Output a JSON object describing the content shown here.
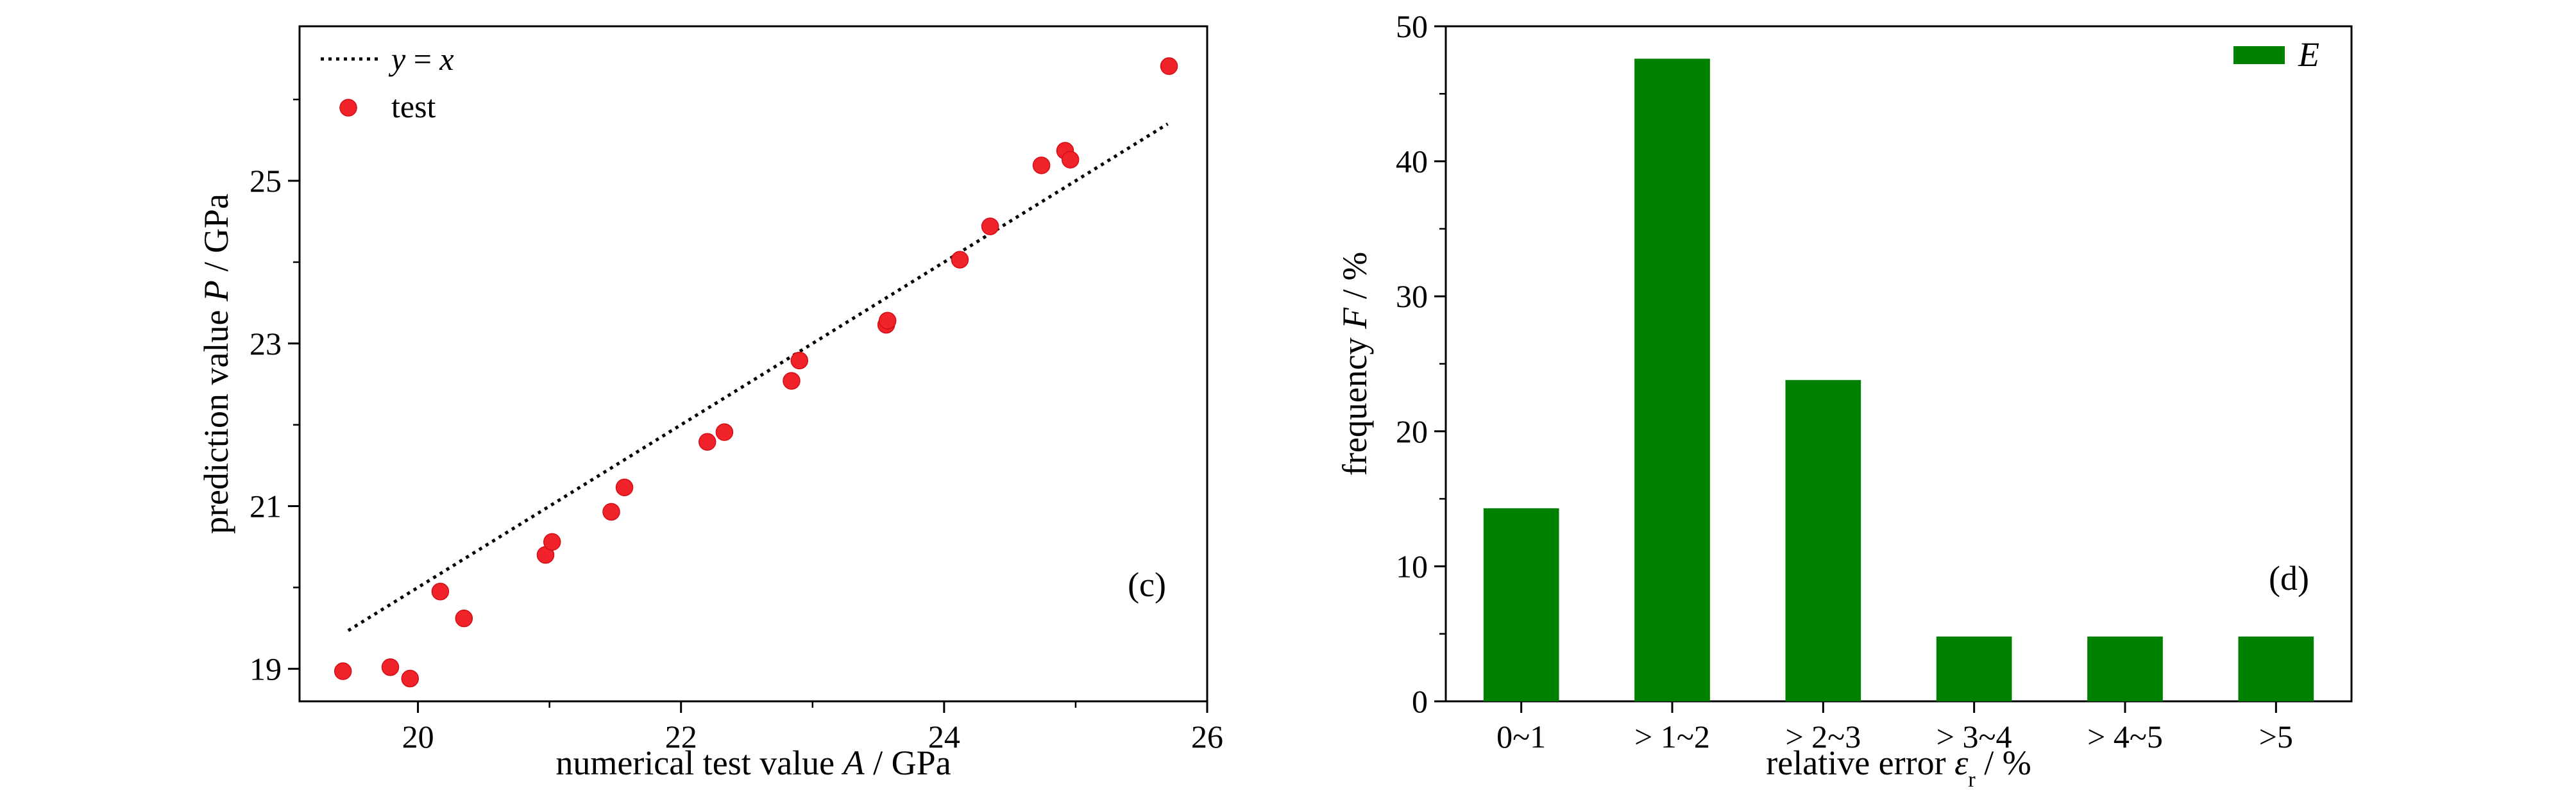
{
  "chart_data": [
    {
      "type": "scatter",
      "panel_label": "(c)",
      "xlabel": {
        "pre": "numerical test value ",
        "var": "A",
        "post": " / GPa"
      },
      "ylabel": {
        "pre": "prediction value ",
        "var": "P",
        "post": " / GPa"
      },
      "xlim": [
        19.1,
        26.0
      ],
      "ylim": [
        18.6,
        26.9
      ],
      "x_ticks": [
        20,
        22,
        24,
        26
      ],
      "y_ticks": [
        19,
        21,
        23,
        25
      ],
      "x_minor_ticks": [
        21,
        23,
        25
      ],
      "y_minor_ticks": [
        20,
        22,
        24,
        26
      ],
      "grid": false,
      "legend_position": "top-left",
      "series": [
        {
          "name": "y = x",
          "name_parts": [
            [
              "y",
              "var"
            ],
            [
              " = ",
              "text"
            ],
            [
              "x",
              "var"
            ]
          ],
          "kind": "line",
          "style": "dotted",
          "color": "#000000",
          "x": [
            19.47,
            25.7
          ],
          "y": [
            19.47,
            25.7
          ]
        },
        {
          "name": "test",
          "kind": "scatter",
          "color": "#f0222a",
          "x": [
            19.43,
            19.79,
            19.94,
            20.17,
            20.35,
            20.97,
            21.02,
            21.47,
            21.57,
            22.2,
            22.33,
            22.84,
            22.9,
            23.56,
            23.57,
            24.12,
            24.35,
            24.74,
            24.92,
            24.96,
            25.71
          ],
          "y": [
            18.97,
            19.02,
            18.88,
            19.95,
            19.62,
            20.4,
            20.56,
            20.93,
            21.23,
            21.79,
            21.91,
            22.54,
            22.79,
            23.23,
            23.28,
            24.03,
            24.44,
            25.19,
            25.37,
            25.26,
            26.41
          ]
        }
      ]
    },
    {
      "type": "bar",
      "panel_label": "(d)",
      "categories": [
        "0~1",
        "> 1~2",
        "> 2~3",
        "> 3~4",
        "> 4~5",
        ">5"
      ],
      "xlabel": {
        "pre": "relative error ",
        "var": "ε",
        "sub": "r",
        "post": " / %"
      },
      "ylabel": {
        "pre": "frequency ",
        "var": "F",
        "post": " / %"
      },
      "ylim": [
        0,
        50
      ],
      "y_ticks": [
        0,
        10,
        20,
        30,
        40,
        50
      ],
      "y_minor_ticks": [
        5,
        15,
        25,
        35,
        45
      ],
      "grid": false,
      "legend_position": "top-right",
      "series": [
        {
          "name": "E",
          "color": "#008000",
          "values": [
            14.3,
            47.6,
            23.8,
            4.8,
            4.8,
            4.8
          ]
        }
      ]
    }
  ]
}
